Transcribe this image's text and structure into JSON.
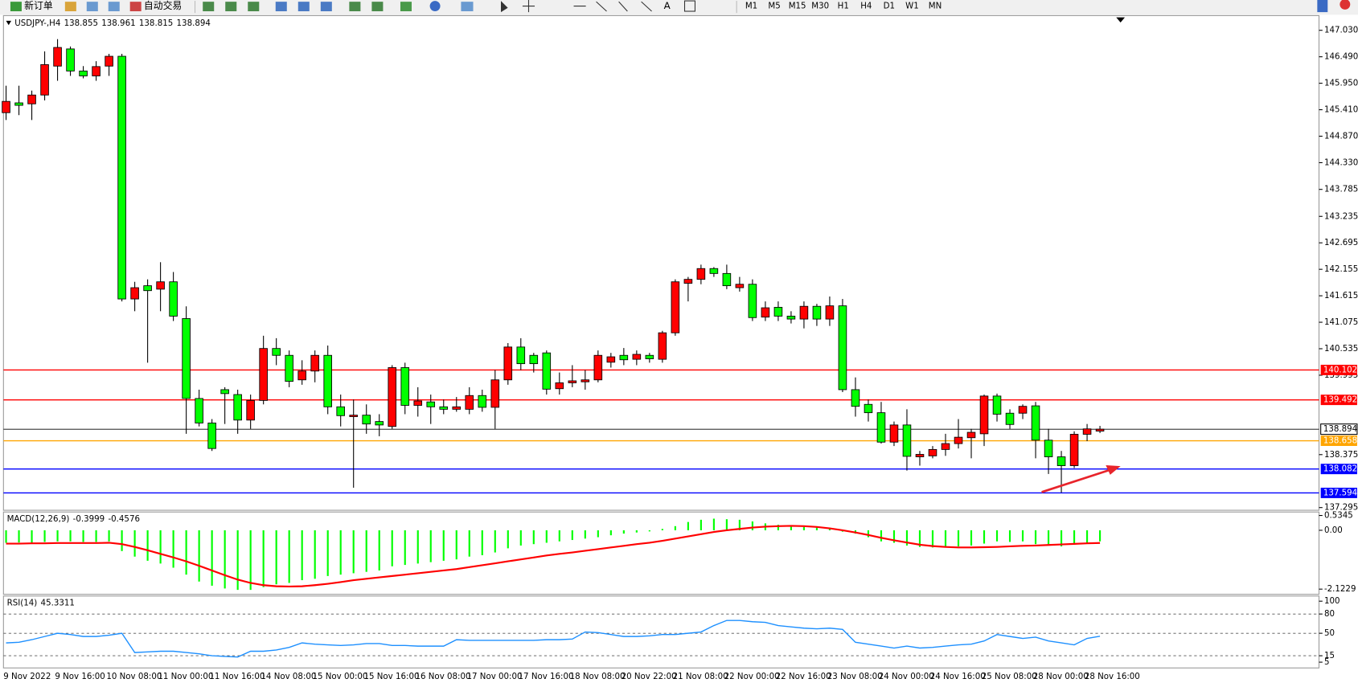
{
  "toolbar": {
    "new_order": "新订单",
    "auto_trading": "自动交易",
    "timeframes": [
      "M1",
      "M5",
      "M15",
      "M30",
      "H1",
      "H4",
      "D1",
      "W1",
      "MN"
    ]
  },
  "chart_data": [
    {
      "type": "candlestick",
      "title": "USDJPY-,H4",
      "categories": [
        "9 Nov 2022",
        null,
        null,
        null,
        "9 Nov 16:00",
        null,
        null,
        null,
        "10 Nov 08:00",
        null,
        null,
        null,
        "11 Nov 00:00",
        null,
        null,
        null,
        "11 Nov 16:00",
        null,
        null,
        null,
        "14 Nov 08:00",
        null,
        null,
        null,
        "15 Nov 00:00",
        null,
        null,
        null,
        "15 Nov 16:00",
        null,
        null,
        null,
        "16 Nov 08:00",
        null,
        null,
        null,
        "17 Nov 00:00",
        null,
        null,
        null,
        "17 Nov 16:00",
        null,
        null,
        null,
        "18 Nov 08:00",
        null,
        null,
        null,
        "20 Nov 22:00",
        null,
        null,
        null,
        "21 Nov 08:00",
        null,
        null,
        null,
        "22 Nov 00:00",
        null,
        null,
        null,
        "22 Nov 16:00",
        null,
        null,
        null,
        "23 Nov 08:00",
        null,
        null,
        null,
        "24 Nov 00:00",
        null,
        null,
        null,
        "24 Nov 16:00",
        null,
        null,
        null,
        "25 Nov 08:00",
        null,
        null,
        null,
        "28 Nov 00:00",
        null,
        null,
        null,
        "28 Nov 16:00",
        null
      ],
      "open": [
        145.35,
        145.55,
        145.53,
        145.71,
        146.3,
        146.65,
        146.2,
        146.1,
        146.3,
        146.5,
        141.55,
        141.82,
        141.75,
        141.9,
        141.15,
        139.52,
        139.02,
        139.7,
        139.6,
        139.08,
        139.48,
        140.54,
        140.4,
        139.9,
        140.08,
        140.4,
        139.35,
        139.15,
        139.18,
        139.05,
        138.95,
        140.15,
        139.38,
        139.45,
        139.35,
        139.3,
        139.3,
        139.58,
        139.34,
        139.9,
        140.57,
        140.4,
        140.45,
        139.72,
        139.84,
        139.86,
        139.9,
        140.26,
        140.4,
        140.32,
        140.4,
        140.32,
        140.86,
        141.87,
        141.95,
        142.17,
        142.07,
        141.78,
        141.85,
        141.18,
        141.38,
        141.2,
        141.14,
        141.4,
        141.14,
        141.41,
        139.7,
        139.4,
        139.23,
        138.63,
        138.98,
        138.33,
        138.35,
        138.48,
        138.6,
        138.72,
        138.8,
        139.57,
        139.22,
        139.22,
        139.37,
        138.67,
        138.33,
        138.15,
        138.79,
        138.855
      ],
      "high": [
        145.9,
        145.9,
        145.8,
        146.6,
        146.85,
        146.7,
        146.3,
        146.4,
        146.55,
        146.55,
        141.9,
        141.95,
        142.3,
        142.1,
        141.4,
        139.7,
        139.1,
        139.75,
        139.7,
        139.6,
        140.8,
        140.75,
        140.5,
        140.3,
        140.5,
        140.6,
        139.6,
        139.5,
        139.4,
        139.2,
        140.2,
        140.25,
        139.75,
        139.6,
        139.5,
        139.55,
        139.75,
        139.7,
        140.1,
        140.65,
        140.75,
        140.45,
        140.5,
        140.05,
        140.2,
        140.1,
        140.5,
        140.45,
        140.55,
        140.5,
        140.45,
        140.9,
        141.95,
        142.0,
        142.25,
        142.2,
        142.25,
        142.0,
        141.95,
        141.5,
        141.5,
        141.3,
        141.5,
        141.45,
        141.6,
        141.55,
        139.95,
        139.5,
        139.45,
        139.05,
        139.3,
        138.45,
        138.55,
        138.8,
        139.1,
        138.9,
        139.6,
        139.62,
        139.3,
        139.4,
        139.45,
        138.9,
        138.45,
        138.85,
        139.0,
        138.961
      ],
      "low": [
        145.2,
        145.3,
        145.2,
        145.6,
        146.0,
        146.1,
        146.05,
        146.0,
        146.1,
        141.5,
        141.3,
        140.25,
        141.3,
        141.1,
        138.8,
        138.95,
        138.45,
        139.0,
        138.8,
        138.9,
        139.4,
        140.2,
        139.75,
        139.8,
        139.85,
        139.2,
        138.95,
        137.7,
        138.8,
        138.75,
        138.9,
        139.2,
        139.15,
        139.0,
        139.2,
        139.25,
        139.2,
        139.25,
        138.9,
        139.8,
        140.1,
        140.05,
        139.6,
        139.6,
        139.75,
        139.7,
        139.85,
        140.15,
        140.2,
        140.2,
        140.25,
        140.25,
        140.8,
        141.5,
        141.85,
        142.0,
        141.75,
        141.7,
        141.1,
        141.1,
        141.1,
        141.05,
        140.95,
        141.0,
        141.0,
        139.65,
        139.15,
        139.05,
        138.6,
        138.55,
        138.05,
        138.15,
        138.3,
        138.35,
        138.5,
        138.3,
        138.55,
        139.05,
        138.9,
        139.1,
        138.3,
        137.98,
        137.6,
        138.1,
        138.65,
        138.815
      ],
      "close": [
        145.58,
        145.5,
        145.71,
        146.33,
        146.68,
        146.2,
        146.1,
        146.29,
        146.5,
        141.55,
        141.78,
        141.72,
        141.9,
        141.2,
        139.52,
        139.02,
        138.5,
        139.62,
        139.08,
        139.48,
        140.54,
        140.4,
        139.87,
        140.08,
        140.4,
        139.35,
        139.17,
        139.18,
        139.0,
        138.98,
        140.15,
        139.38,
        139.47,
        139.35,
        139.3,
        139.35,
        139.58,
        139.34,
        139.9,
        140.57,
        140.23,
        140.23,
        139.71,
        139.84,
        139.88,
        139.9,
        140.4,
        140.37,
        140.31,
        140.42,
        140.33,
        140.86,
        141.9,
        141.95,
        142.17,
        142.07,
        141.82,
        141.85,
        141.17,
        141.37,
        141.2,
        141.14,
        141.4,
        141.14,
        141.41,
        139.7,
        139.36,
        139.23,
        138.63,
        138.98,
        138.34,
        138.38,
        138.48,
        138.6,
        138.73,
        138.83,
        139.57,
        139.2,
        138.99,
        139.36,
        138.67,
        138.33,
        138.15,
        138.79,
        138.9,
        138.894
      ],
      "up_color": "#ff0000",
      "down_color": "#00ff00",
      "ylim": [
        137.24,
        147.33
      ],
      "yticks": [
        {
          "value": 147.03,
          "label": "147.030"
        },
        {
          "value": 146.49,
          "label": "146.490"
        },
        {
          "value": 145.95,
          "label": "145.950"
        },
        {
          "value": 145.41,
          "label": "145.410"
        },
        {
          "value": 144.87,
          "label": "144.870"
        },
        {
          "value": 144.33,
          "label": "144.330"
        },
        143.785,
        143.235,
        142.695,
        142.155,
        141.615,
        141.075,
        140.535,
        139.995,
        138.375,
        137.295
      ],
      "lines": [
        {
          "value": 140.102,
          "color": "#ff0000"
        },
        {
          "value": 139.492,
          "color": "#ff0000"
        },
        {
          "value": 138.658,
          "color": "#ffa500"
        },
        {
          "value": 138.082,
          "color": "#0000ff"
        },
        {
          "value": 137.594,
          "color": "#0000ff"
        }
      ]
    },
    {
      "type": "macd",
      "title": "MACD(12,26,9)",
      "histogram": [
        -0.45,
        -0.44,
        -0.45,
        -0.42,
        -0.4,
        -0.4,
        -0.42,
        -0.42,
        -0.4,
        -0.75,
        -0.95,
        -1.1,
        -1.2,
        -1.35,
        -1.6,
        -1.85,
        -2.0,
        -2.1,
        -2.15,
        -2.15,
        -2.05,
        -1.95,
        -1.9,
        -1.8,
        -1.75,
        -1.65,
        -1.6,
        -1.55,
        -1.5,
        -1.45,
        -1.3,
        -1.25,
        -1.2,
        -1.15,
        -1.1,
        -1.05,
        -0.95,
        -0.9,
        -0.8,
        -0.65,
        -0.55,
        -0.5,
        -0.45,
        -0.4,
        -0.35,
        -0.3,
        -0.25,
        -0.18,
        -0.12,
        -0.08,
        -0.04,
        0.05,
        0.15,
        0.3,
        0.38,
        0.42,
        0.4,
        0.38,
        0.32,
        0.25,
        0.2,
        0.15,
        0.12,
        0.1,
        0.08,
        -0.05,
        -0.12,
        -0.25,
        -0.4,
        -0.45,
        -0.55,
        -0.6,
        -0.62,
        -0.6,
        -0.58,
        -0.55,
        -0.48,
        -0.4,
        -0.42,
        -0.4,
        -0.5,
        -0.55,
        -0.58,
        -0.52,
        -0.45,
        -0.3999
      ],
      "signal": [
        -0.48,
        -0.48,
        -0.47,
        -0.47,
        -0.46,
        -0.46,
        -0.46,
        -0.46,
        -0.45,
        -0.5,
        -0.6,
        -0.72,
        -0.85,
        -0.98,
        -1.12,
        -1.28,
        -1.45,
        -1.62,
        -1.78,
        -1.9,
        -1.98,
        -2.02,
        -2.03,
        -2.02,
        -1.98,
        -1.93,
        -1.87,
        -1.8,
        -1.75,
        -1.7,
        -1.65,
        -1.6,
        -1.55,
        -1.5,
        -1.45,
        -1.4,
        -1.33,
        -1.26,
        -1.19,
        -1.12,
        -1.05,
        -0.98,
        -0.91,
        -0.85,
        -0.8,
        -0.74,
        -0.68,
        -0.62,
        -0.56,
        -0.5,
        -0.45,
        -0.38,
        -0.3,
        -0.22,
        -0.14,
        -0.06,
        0.0,
        0.05,
        0.1,
        0.13,
        0.15,
        0.16,
        0.15,
        0.12,
        0.07,
        0.0,
        -0.08,
        -0.17,
        -0.27,
        -0.36,
        -0.44,
        -0.52,
        -0.57,
        -0.6,
        -0.62,
        -0.62,
        -0.61,
        -0.6,
        -0.58,
        -0.56,
        -0.55,
        -0.53,
        -0.51,
        -0.49,
        -0.47,
        -0.4576
      ],
      "histogram_color": "#00ff00",
      "signal_color": "#ff0000",
      "ylim": [
        -2.31,
        0.66
      ],
      "yticks": [
        0.5345,
        {
          "value": 0,
          "label": "0.00"
        },
        -2.1229
      ]
    },
    {
      "type": "rsi",
      "title": "RSI(14)",
      "values": [
        35,
        36,
        40,
        45,
        50,
        48,
        45,
        45,
        47,
        50,
        20,
        21,
        22,
        22,
        20,
        18,
        15,
        14,
        13,
        22,
        22,
        24,
        28,
        35,
        33,
        32,
        31,
        32,
        34,
        34,
        31,
        31,
        30,
        30,
        30,
        40,
        39,
        39,
        39,
        39,
        39,
        39,
        40,
        40,
        41,
        52,
        51,
        48,
        45,
        45,
        46,
        48,
        48,
        50,
        52,
        62,
        70,
        70,
        68,
        67,
        62,
        60,
        58,
        57,
        58,
        56,
        36,
        33,
        30,
        27,
        30,
        27,
        28,
        30,
        32,
        33,
        38,
        48,
        45,
        42,
        44,
        38,
        35,
        32,
        42,
        45.3311
      ],
      "color": "#1e90ff",
      "ylim": [
        -4,
        108
      ],
      "yticks": [
        100,
        80,
        50,
        15,
        5
      ],
      "levels": [
        80,
        50,
        15
      ]
    }
  ]
}
